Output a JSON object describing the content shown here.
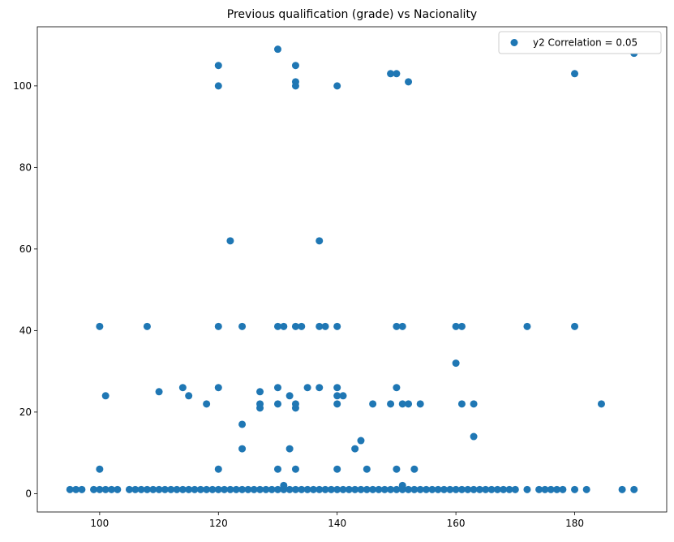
{
  "chart_data": {
    "type": "scatter",
    "title": "Previous qualification (grade) vs Nacionality",
    "xlabel": "",
    "ylabel": "",
    "xlim": [
      89.5,
      195.5
    ],
    "ylim": [
      -4.5,
      114.5
    ],
    "grid": false,
    "legend_position": "top-right",
    "color": "#1f77b4",
    "xticks": [
      100,
      120,
      140,
      160,
      180
    ],
    "yticks": [
      0,
      20,
      40,
      60,
      80,
      100
    ],
    "series": [
      {
        "name": "y2 Correlation = 0.05",
        "points": [
          [
            95,
            1
          ],
          [
            96,
            1
          ],
          [
            97,
            1
          ],
          [
            99,
            1
          ],
          [
            100,
            1
          ],
          [
            101,
            1
          ],
          [
            102,
            1
          ],
          [
            103,
            1
          ],
          [
            105,
            1
          ],
          [
            106,
            1
          ],
          [
            107,
            1
          ],
          [
            108,
            1
          ],
          [
            109,
            1
          ],
          [
            110,
            1
          ],
          [
            111,
            1
          ],
          [
            112,
            1
          ],
          [
            113,
            1
          ],
          [
            114,
            1
          ],
          [
            115,
            1
          ],
          [
            116,
            1
          ],
          [
            117,
            1
          ],
          [
            118,
            1
          ],
          [
            119,
            1
          ],
          [
            120,
            1
          ],
          [
            121,
            1
          ],
          [
            122,
            1
          ],
          [
            123,
            1
          ],
          [
            124,
            1
          ],
          [
            125,
            1
          ],
          [
            126,
            1
          ],
          [
            127,
            1
          ],
          [
            128,
            1
          ],
          [
            129,
            1
          ],
          [
            130,
            1
          ],
          [
            131,
            1
          ],
          [
            132,
            1
          ],
          [
            133,
            1
          ],
          [
            134,
            1
          ],
          [
            135,
            1
          ],
          [
            136,
            1
          ],
          [
            137,
            1
          ],
          [
            138,
            1
          ],
          [
            139,
            1
          ],
          [
            140,
            1
          ],
          [
            141,
            1
          ],
          [
            142,
            1
          ],
          [
            143,
            1
          ],
          [
            144,
            1
          ],
          [
            145,
            1
          ],
          [
            146,
            1
          ],
          [
            147,
            1
          ],
          [
            148,
            1
          ],
          [
            149,
            1
          ],
          [
            150,
            1
          ],
          [
            151,
            1
          ],
          [
            152,
            1
          ],
          [
            153,
            1
          ],
          [
            154,
            1
          ],
          [
            155,
            1
          ],
          [
            156,
            1
          ],
          [
            157,
            1
          ],
          [
            158,
            1
          ],
          [
            159,
            1
          ],
          [
            160,
            1
          ],
          [
            161,
            1
          ],
          [
            162,
            1
          ],
          [
            163,
            1
          ],
          [
            164,
            1
          ],
          [
            165,
            1
          ],
          [
            166,
            1
          ],
          [
            167,
            1
          ],
          [
            168,
            1
          ],
          [
            169,
            1
          ],
          [
            170,
            1
          ],
          [
            172,
            1
          ],
          [
            174,
            1
          ],
          [
            175,
            1
          ],
          [
            176,
            1
          ],
          [
            177,
            1
          ],
          [
            178,
            1
          ],
          [
            180,
            1
          ],
          [
            182,
            1
          ],
          [
            188,
            1
          ],
          [
            190,
            1
          ],
          [
            100,
            6
          ],
          [
            120,
            6
          ],
          [
            130,
            6
          ],
          [
            133,
            6
          ],
          [
            140,
            6
          ],
          [
            145,
            6
          ],
          [
            150,
            6
          ],
          [
            153,
            6
          ],
          [
            131,
            2
          ],
          [
            151,
            2
          ],
          [
            124,
            11
          ],
          [
            132,
            11
          ],
          [
            143,
            11
          ],
          [
            144,
            13
          ],
          [
            163,
            14
          ],
          [
            124,
            17
          ],
          [
            127,
            21
          ],
          [
            133,
            21
          ],
          [
            118,
            22
          ],
          [
            127,
            22
          ],
          [
            130,
            22
          ],
          [
            133,
            22
          ],
          [
            140,
            22
          ],
          [
            146,
            22
          ],
          [
            149,
            22
          ],
          [
            151,
            22
          ],
          [
            152,
            22
          ],
          [
            154,
            22
          ],
          [
            161,
            22
          ],
          [
            163,
            22
          ],
          [
            184.5,
            22
          ],
          [
            101,
            24
          ],
          [
            115,
            24
          ],
          [
            132,
            24
          ],
          [
            140,
            24
          ],
          [
            141,
            24
          ],
          [
            110,
            25
          ],
          [
            127,
            25
          ],
          [
            114,
            26
          ],
          [
            120,
            26
          ],
          [
            130,
            26
          ],
          [
            135,
            26
          ],
          [
            137,
            26
          ],
          [
            140,
            26
          ],
          [
            150,
            26
          ],
          [
            160,
            32
          ],
          [
            100,
            41
          ],
          [
            108,
            41
          ],
          [
            120,
            41
          ],
          [
            124,
            41
          ],
          [
            130,
            41
          ],
          [
            131,
            41
          ],
          [
            133,
            41
          ],
          [
            134,
            41
          ],
          [
            137,
            41
          ],
          [
            138,
            41
          ],
          [
            140,
            41
          ],
          [
            150,
            41
          ],
          [
            151,
            41
          ],
          [
            160,
            41
          ],
          [
            161,
            41
          ],
          [
            172,
            41
          ],
          [
            180,
            41
          ],
          [
            122,
            62
          ],
          [
            137,
            62
          ],
          [
            120,
            100
          ],
          [
            133,
            100
          ],
          [
            140,
            100
          ],
          [
            133,
            101
          ],
          [
            152,
            101
          ],
          [
            149,
            103
          ],
          [
            150,
            103
          ],
          [
            180,
            103
          ],
          [
            120,
            105
          ],
          [
            133,
            105
          ],
          [
            190,
            108
          ],
          [
            130,
            109
          ]
        ]
      }
    ]
  }
}
